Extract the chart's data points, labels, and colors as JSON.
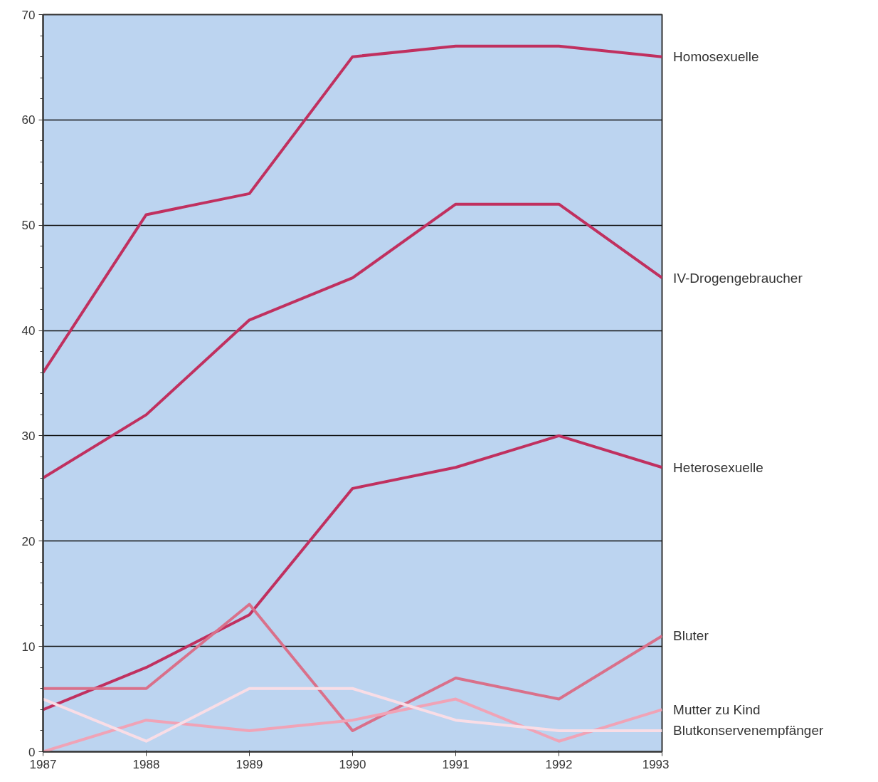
{
  "chart_data": {
    "type": "line",
    "x": [
      1987,
      1988,
      1989,
      1990,
      1991,
      1992,
      1993
    ],
    "series": [
      {
        "name": "Homosexuelle",
        "color": "#c0305f",
        "values": [
          36,
          51,
          53,
          66,
          67,
          67,
          66
        ]
      },
      {
        "name": "IV-Drogengebraucher",
        "color": "#c0305f",
        "values": [
          26,
          32,
          41,
          45,
          52,
          52,
          45
        ]
      },
      {
        "name": "Heterosexuelle",
        "color": "#c0305f",
        "values": [
          4,
          8,
          13,
          25,
          27,
          30,
          27
        ]
      },
      {
        "name": "Bluter",
        "color": "#d9708a",
        "values": [
          6,
          6,
          14,
          2,
          7,
          5,
          11
        ]
      },
      {
        "name": "Mutter zu Kind",
        "color": "#f0a3b6",
        "values": [
          0,
          3,
          2,
          3,
          5,
          1,
          4
        ]
      },
      {
        "name": "Blutkonservenempfänger",
        "color": "#f9dde6",
        "values": [
          5,
          1,
          6,
          6,
          3,
          2,
          2
        ]
      }
    ],
    "xlim": [
      1987,
      1993
    ],
    "xticks": [
      1987,
      1988,
      1989,
      1990,
      1991,
      1992,
      1993
    ],
    "ylim": [
      0,
      70
    ],
    "yticks": [
      0,
      10,
      20,
      30,
      40,
      50,
      60,
      70
    ],
    "grid": "y",
    "marker": "none",
    "line_style": "solid"
  }
}
